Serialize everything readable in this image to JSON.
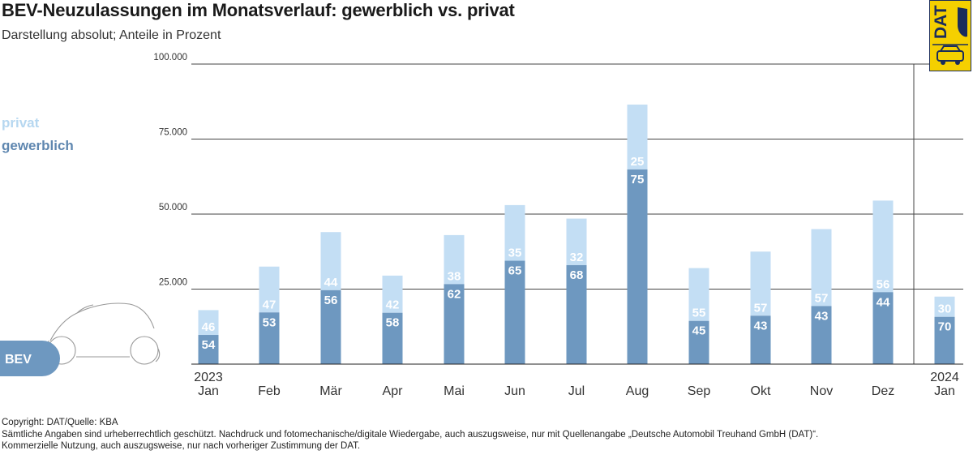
{
  "header": {
    "title": "BEV-Neuzulassungen im Monatsverlauf: gewerblich vs. privat",
    "subtitle": "Darstellung absolut; Anteile in Prozent"
  },
  "logo": {
    "text": "DAT"
  },
  "car_badge": {
    "label": "BEV"
  },
  "footer": {
    "line1": "Copyright: DAT/Quelle: KBA",
    "line2": "Sämtliche Angaben sind urheberrechtlich geschützt. Nachdruck und fotomechanische/digitale Wiedergabe, auch auszugsweise, nur mit Quellenangabe „Deutsche Automobil Treuhand GmbH (DAT)“.",
    "line3": "Kommerzielle Nutzung, auch auszugsweise, nur nach vorheriger Zustimmung der DAT."
  },
  "colors": {
    "gewerblich": "#6e98c0",
    "privat": "#c3def4",
    "gewerblich_label": "#5f87b0",
    "privat_label": "#b6d7f0",
    "grid": "#444444",
    "logo_yellow": "#f5d000",
    "logo_navy": "#1a2c5b"
  },
  "chart_data": {
    "type": "bar",
    "stacked": true,
    "title": "BEV-Neuzulassungen im Monatsverlauf: gewerblich vs. privat",
    "subtitle": "Darstellung absolut; Anteile in Prozent",
    "categories": [
      "Jan",
      "Feb",
      "Mär",
      "Apr",
      "Mai",
      "Jun",
      "Jul",
      "Aug",
      "Sep",
      "Okt",
      "Nov",
      "Dez",
      "Jan"
    ],
    "years": [
      "2023",
      "",
      "",
      "",
      "",
      "",
      "",
      "",
      "",
      "",
      "",
      "",
      "2024"
    ],
    "totals": [
      18000,
      32500,
      44000,
      29500,
      43000,
      53000,
      48500,
      86500,
      32000,
      37500,
      45000,
      54500,
      22500
    ],
    "series": [
      {
        "name": "gewerblich",
        "shares": [
          54,
          53,
          56,
          58,
          62,
          65,
          68,
          75,
          45,
          43,
          43,
          44,
          70
        ]
      },
      {
        "name": "privat",
        "shares": [
          46,
          47,
          44,
          42,
          38,
          35,
          32,
          25,
          55,
          57,
          57,
          56,
          30
        ]
      }
    ],
    "ylim": [
      0,
      100000
    ],
    "yticks": [
      25000,
      50000,
      75000,
      100000
    ],
    "ytick_labels": [
      "25.000",
      "50.000",
      "75.000",
      "100.000"
    ],
    "legend_position": "left",
    "grid": true
  }
}
